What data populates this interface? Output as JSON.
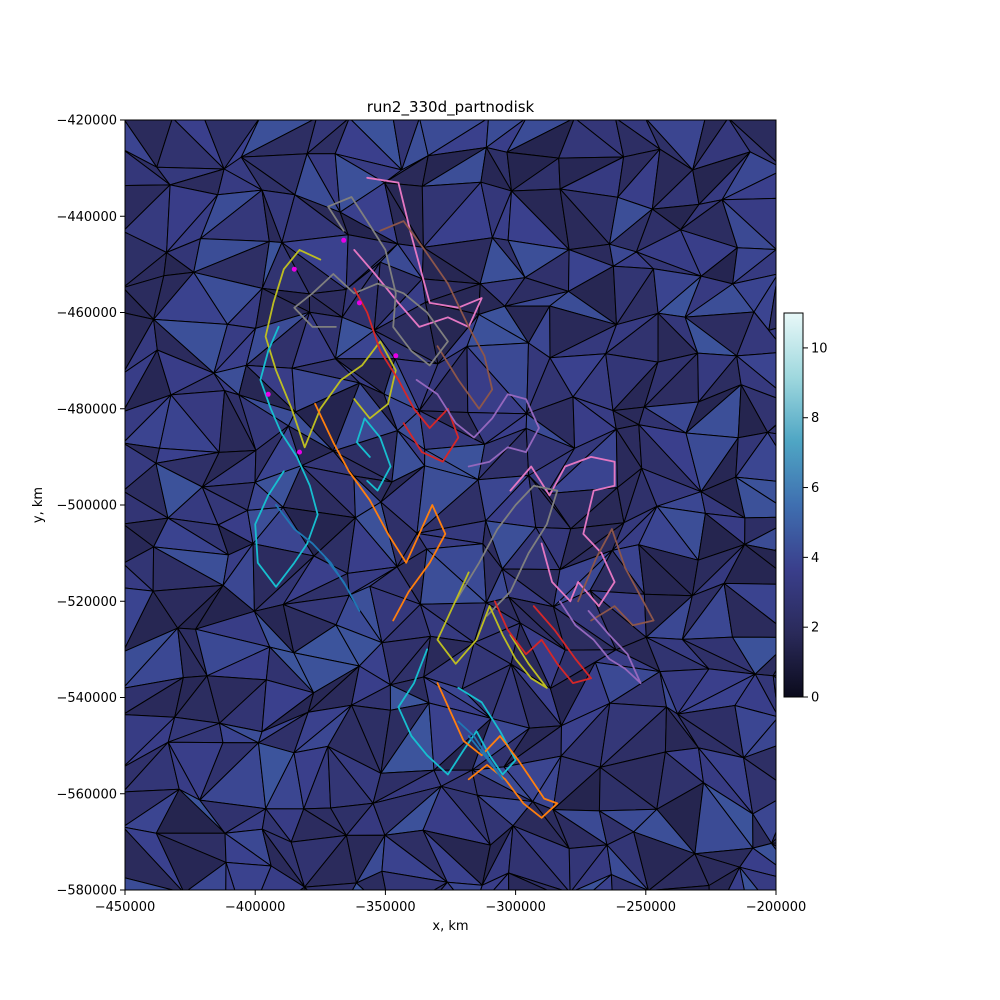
{
  "chart_data": {
    "type": "tripcolor_with_trajectories",
    "title": "run2_330d_partnodisk",
    "xlabel": "x, km",
    "ylabel": "y, km",
    "xlim": [
      -450000,
      -200000
    ],
    "ylim": [
      -580000,
      -420000
    ],
    "x_ticks": [
      {
        "value": -450000,
        "label": "−450000"
      },
      {
        "value": -400000,
        "label": "−400000"
      },
      {
        "value": -350000,
        "label": "−350000"
      },
      {
        "value": -300000,
        "label": "−300000"
      },
      {
        "value": -250000,
        "label": "−250000"
      },
      {
        "value": -200000,
        "label": "−200000"
      }
    ],
    "y_ticks": [
      {
        "value": -420000,
        "label": "−420000"
      },
      {
        "value": -440000,
        "label": "−440000"
      },
      {
        "value": -460000,
        "label": "−460000"
      },
      {
        "value": -480000,
        "label": "−480000"
      },
      {
        "value": -500000,
        "label": "−500000"
      },
      {
        "value": -520000,
        "label": "−520000"
      },
      {
        "value": -540000,
        "label": "−540000"
      },
      {
        "value": -560000,
        "label": "−560000"
      },
      {
        "value": -580000,
        "label": "−580000"
      }
    ],
    "colorbar": {
      "range": [
        0,
        11
      ],
      "ticks": [
        {
          "value": 0,
          "label": "0"
        },
        {
          "value": 2,
          "label": "2"
        },
        {
          "value": 4,
          "label": "4"
        },
        {
          "value": 6,
          "label": "6"
        },
        {
          "value": 8,
          "label": "8"
        },
        {
          "value": 10,
          "label": "10"
        }
      ],
      "colors": [
        "#0b0b1c",
        "#2a2a5a",
        "#3a3f8c",
        "#3f6fb0",
        "#4fa6c4",
        "#9fd8de",
        "#e8f8f8"
      ]
    },
    "field_typical_range": [
      1.5,
      4.5
    ],
    "trajectory_colors": [
      "#e377c2",
      "#8c564b",
      "#7f7f7f",
      "#bcbd22",
      "#17becf",
      "#ff7f0e",
      "#d62728",
      "#9467bd",
      "#1f77b4"
    ],
    "series": [
      {
        "color": "#e377c2",
        "points": [
          [
            -357000,
            -432000
          ],
          [
            -345000,
            -433000
          ],
          [
            -340000,
            -444000
          ],
          [
            -333000,
            -458000
          ],
          [
            -322000,
            -459000
          ],
          [
            -313000,
            -457000
          ],
          [
            -318000,
            -463000
          ],
          [
            -326000,
            -461000
          ],
          [
            -337000,
            -463000
          ],
          [
            -345000,
            -458000
          ],
          [
            -354000,
            -452000
          ],
          [
            -362000,
            -447000
          ]
        ]
      },
      {
        "color": "#e377c2",
        "points": [
          [
            -302000,
            -497000
          ],
          [
            -294000,
            -492000
          ],
          [
            -287000,
            -498000
          ],
          [
            -281000,
            -492000
          ],
          [
            -271000,
            -490000
          ],
          [
            -262000,
            -491000
          ],
          [
            -262000,
            -496000
          ],
          [
            -270000,
            -497000
          ],
          [
            -274000,
            -506000
          ],
          [
            -267000,
            -510000
          ],
          [
            -262000,
            -516000
          ],
          [
            -268000,
            -521000
          ],
          [
            -276000,
            -516000
          ],
          [
            -279000,
            -520000
          ],
          [
            -286000,
            -516000
          ],
          [
            -290000,
            -508000
          ]
        ]
      },
      {
        "color": "#8c564b",
        "points": [
          [
            -352000,
            -443000
          ],
          [
            -343000,
            -441000
          ],
          [
            -335000,
            -447000
          ],
          [
            -326000,
            -454000
          ],
          [
            -318000,
            -463000
          ],
          [
            -312000,
            -469000
          ],
          [
            -309000,
            -476000
          ],
          [
            -314000,
            -480000
          ],
          [
            -322000,
            -474000
          ],
          [
            -330000,
            -467000
          ]
        ]
      },
      {
        "color": "#8c564b",
        "points": [
          [
            -276000,
            -520000
          ],
          [
            -269000,
            -511000
          ],
          [
            -263000,
            -505000
          ],
          [
            -258000,
            -513000
          ],
          [
            -252000,
            -519000
          ],
          [
            -247000,
            -524000
          ],
          [
            -255000,
            -525000
          ],
          [
            -262000,
            -521000
          ],
          [
            -271000,
            -524000
          ]
        ]
      },
      {
        "color": "#7f7f7f",
        "points": [
          [
            -366000,
            -443000
          ],
          [
            -372000,
            -438000
          ],
          [
            -363000,
            -436000
          ],
          [
            -357000,
            -441000
          ],
          [
            -350000,
            -447000
          ],
          [
            -346000,
            -456000
          ],
          [
            -347000,
            -463000
          ],
          [
            -340000,
            -468000
          ],
          [
            -333000,
            -471000
          ],
          [
            -326000,
            -466000
          ],
          [
            -334000,
            -460000
          ],
          [
            -343000,
            -456000
          ],
          [
            -353000,
            -454000
          ],
          [
            -362000,
            -456000
          ],
          [
            -370000,
            -452000
          ],
          [
            -378000,
            -456000
          ],
          [
            -385000,
            -459000
          ],
          [
            -378000,
            -463000
          ],
          [
            -369000,
            -463000
          ]
        ]
      },
      {
        "color": "#7f7f7f",
        "points": [
          [
            -323000,
            -520000
          ],
          [
            -314000,
            -512000
          ],
          [
            -307000,
            -505000
          ],
          [
            -300000,
            -500000
          ],
          [
            -293000,
            -496000
          ],
          [
            -284000,
            -497000
          ],
          [
            -288000,
            -504000
          ],
          [
            -295000,
            -510000
          ],
          [
            -302000,
            -518000
          ],
          [
            -311000,
            -523000
          ]
        ]
      },
      {
        "color": "#bcbd22",
        "points": [
          [
            -375000,
            -449000
          ],
          [
            -383000,
            -447000
          ],
          [
            -389000,
            -451000
          ],
          [
            -393000,
            -458000
          ],
          [
            -396000,
            -465000
          ],
          [
            -392000,
            -472000
          ],
          [
            -386000,
            -480000
          ],
          [
            -381000,
            -488000
          ],
          [
            -375000,
            -480000
          ],
          [
            -367000,
            -474000
          ],
          [
            -359000,
            -471000
          ],
          [
            -352000,
            -466000
          ],
          [
            -346000,
            -472000
          ],
          [
            -349000,
            -479000
          ],
          [
            -356000,
            -482000
          ],
          [
            -362000,
            -478000
          ]
        ]
      },
      {
        "color": "#bcbd22",
        "points": [
          [
            -318000,
            -514000
          ],
          [
            -324000,
            -521000
          ],
          [
            -330000,
            -528000
          ],
          [
            -323000,
            -533000
          ],
          [
            -315000,
            -528000
          ],
          [
            -310000,
            -521000
          ],
          [
            -305000,
            -527000
          ],
          [
            -300000,
            -532000
          ],
          [
            -294000,
            -536000
          ],
          [
            -288000,
            -538000
          ],
          [
            -295000,
            -533000
          ],
          [
            -302000,
            -527000
          ]
        ]
      },
      {
        "color": "#17becf",
        "points": [
          [
            -391000,
            -463000
          ],
          [
            -395000,
            -468000
          ],
          [
            -398000,
            -474000
          ],
          [
            -394000,
            -480000
          ],
          [
            -390000,
            -485000
          ],
          [
            -384000,
            -490000
          ],
          [
            -379000,
            -496000
          ],
          [
            -376000,
            -502000
          ],
          [
            -380000,
            -508000
          ],
          [
            -385000,
            -512000
          ],
          [
            -392000,
            -517000
          ],
          [
            -399000,
            -512000
          ],
          [
            -400000,
            -504000
          ],
          [
            -395000,
            -498000
          ],
          [
            -389000,
            -493000
          ]
        ]
      },
      {
        "color": "#17becf",
        "points": [
          [
            -356000,
            -490000
          ],
          [
            -361000,
            -487000
          ],
          [
            -358000,
            -482000
          ],
          [
            -352000,
            -486000
          ],
          [
            -348000,
            -492000
          ],
          [
            -353000,
            -497000
          ],
          [
            -357000,
            -495000
          ]
        ]
      },
      {
        "color": "#17becf",
        "points": [
          [
            -334000,
            -530000
          ],
          [
            -339000,
            -537000
          ],
          [
            -345000,
            -542000
          ],
          [
            -340000,
            -548000
          ],
          [
            -334000,
            -552000
          ],
          [
            -326000,
            -556000
          ],
          [
            -320000,
            -551000
          ],
          [
            -315000,
            -547000
          ],
          [
            -310000,
            -552000
          ],
          [
            -305000,
            -556000
          ],
          [
            -300000,
            -553000
          ],
          [
            -306000,
            -547000
          ],
          [
            -313000,
            -541000
          ],
          [
            -322000,
            -538000
          ]
        ]
      },
      {
        "color": "#ff7f0e",
        "points": [
          [
            -377000,
            -479000
          ],
          [
            -370000,
            -487000
          ],
          [
            -364000,
            -493000
          ],
          [
            -356000,
            -499000
          ],
          [
            -349000,
            -506000
          ],
          [
            -342000,
            -512000
          ],
          [
            -337000,
            -506000
          ],
          [
            -332000,
            -500000
          ],
          [
            -327000,
            -506000
          ],
          [
            -333000,
            -512000
          ],
          [
            -341000,
            -518000
          ],
          [
            -347000,
            -524000
          ]
        ]
      },
      {
        "color": "#ff7f0e",
        "points": [
          [
            -330000,
            -537000
          ],
          [
            -325000,
            -543000
          ],
          [
            -320000,
            -549000
          ],
          [
            -313000,
            -552000
          ],
          [
            -306000,
            -548000
          ],
          [
            -299000,
            -553000
          ],
          [
            -294000,
            -557000
          ],
          [
            -289000,
            -561000
          ],
          [
            -284000,
            -562000
          ],
          [
            -290000,
            -565000
          ],
          [
            -297000,
            -562000
          ],
          [
            -304000,
            -557000
          ],
          [
            -311000,
            -554000
          ],
          [
            -318000,
            -557000
          ]
        ]
      },
      {
        "color": "#d62728",
        "points": [
          [
            -362000,
            -455000
          ],
          [
            -357000,
            -460000
          ],
          [
            -352000,
            -468000
          ],
          [
            -345000,
            -474000
          ],
          [
            -339000,
            -480000
          ],
          [
            -333000,
            -484000
          ],
          [
            -326000,
            -480000
          ],
          [
            -322000,
            -486000
          ],
          [
            -328000,
            -491000
          ],
          [
            -336000,
            -489000
          ],
          [
            -343000,
            -483000
          ]
        ]
      },
      {
        "color": "#d62728",
        "points": [
          [
            -308000,
            -520000
          ],
          [
            -303000,
            -526000
          ],
          [
            -296000,
            -531000
          ],
          [
            -290000,
            -528000
          ],
          [
            -284000,
            -533000
          ],
          [
            -278000,
            -537000
          ],
          [
            -271000,
            -536000
          ],
          [
            -277000,
            -532000
          ],
          [
            -285000,
            -526000
          ],
          [
            -293000,
            -521000
          ]
        ]
      },
      {
        "color": "#9467bd",
        "points": [
          [
            -338000,
            -474000
          ],
          [
            -330000,
            -477000
          ],
          [
            -323000,
            -483000
          ],
          [
            -316000,
            -486000
          ],
          [
            -309000,
            -482000
          ],
          [
            -303000,
            -477000
          ],
          [
            -296000,
            -478000
          ],
          [
            -291000,
            -484000
          ],
          [
            -296000,
            -489000
          ],
          [
            -303000,
            -488000
          ],
          [
            -310000,
            -491000
          ],
          [
            -318000,
            -492000
          ]
        ]
      },
      {
        "color": "#9467bd",
        "points": [
          [
            -283000,
            -520000
          ],
          [
            -277000,
            -525000
          ],
          [
            -270000,
            -528000
          ],
          [
            -264000,
            -532000
          ],
          [
            -258000,
            -534000
          ],
          [
            -252000,
            -537000
          ],
          [
            -257000,
            -531000
          ],
          [
            -264000,
            -527000
          ],
          [
            -272000,
            -522000
          ]
        ]
      },
      {
        "color": "#1f77b4",
        "points": [
          [
            -392000,
            -500000
          ],
          [
            -385000,
            -505000
          ],
          [
            -378000,
            -508000
          ],
          [
            -371000,
            -512000
          ],
          [
            -365000,
            -517000
          ],
          [
            -360000,
            -522000
          ],
          [
            -366000,
            -516000
          ],
          [
            -373000,
            -511000
          ]
        ]
      },
      {
        "color": "#1f77b4",
        "points": [
          [
            -322000,
            -545000
          ],
          [
            -316000,
            -548000
          ],
          [
            -310000,
            -553000
          ],
          [
            -305000,
            -557000
          ],
          [
            -312000,
            -552000
          ],
          [
            -318000,
            -548000
          ]
        ]
      }
    ],
    "markers": [
      {
        "color": "#e800e8",
        "points": [
          [
            -385000,
            -451000
          ],
          [
            -366000,
            -445000
          ],
          [
            -360000,
            -458000
          ],
          [
            -395000,
            -477000
          ],
          [
            -383000,
            -489000
          ],
          [
            -346000,
            -469000
          ]
        ]
      }
    ]
  }
}
